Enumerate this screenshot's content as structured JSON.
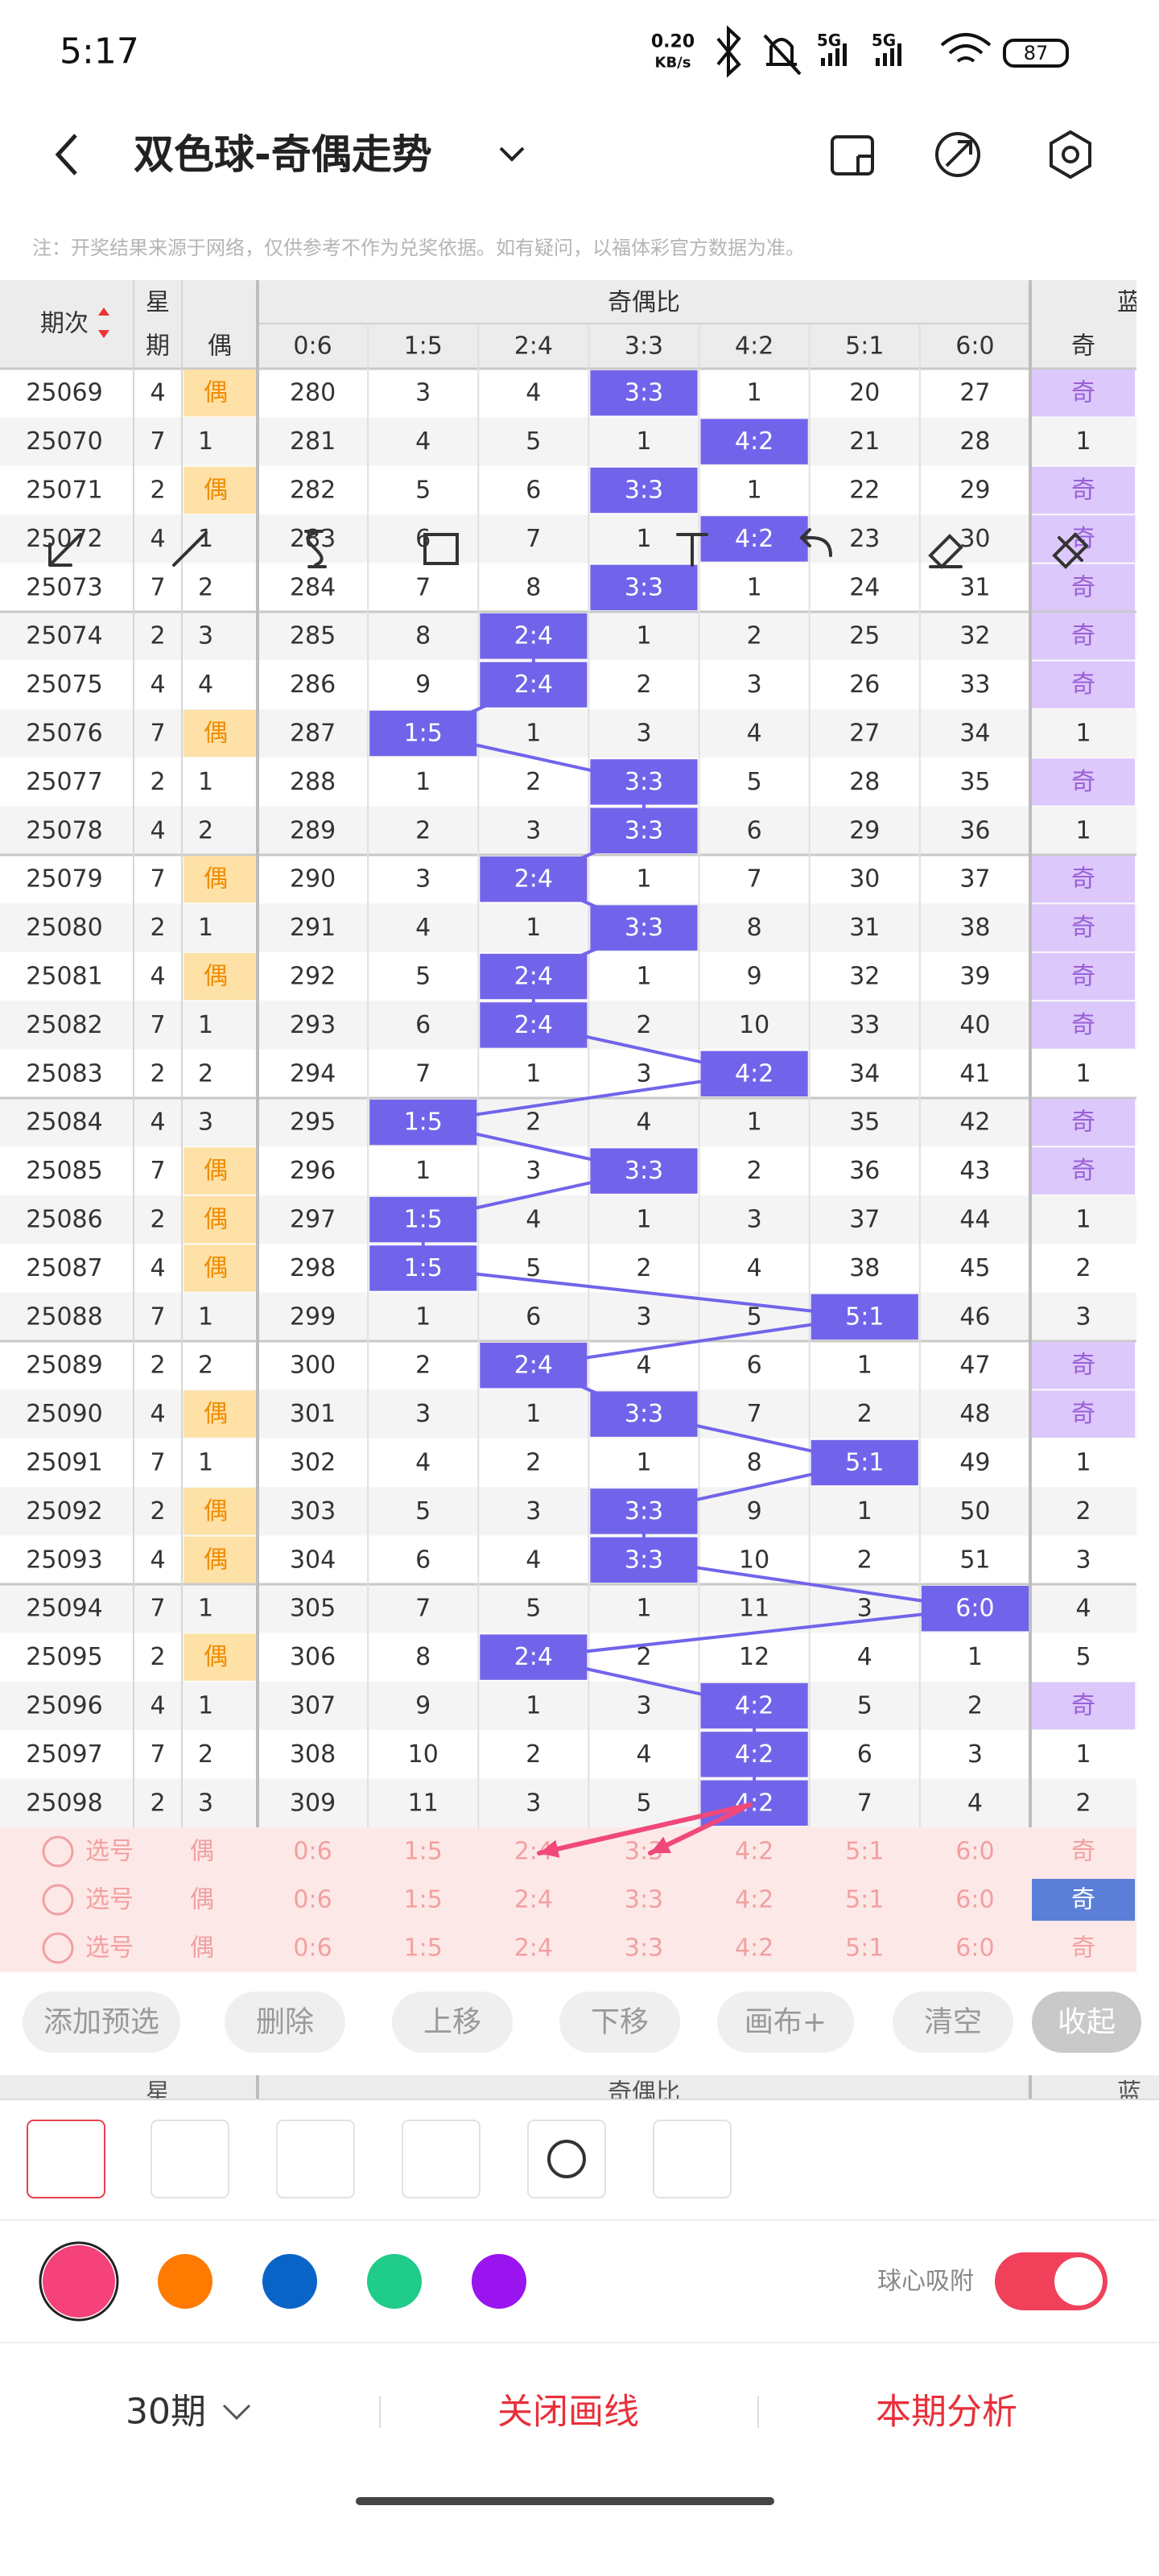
{
  "status_bar": {
    "time": "5:17",
    "speed": "0.20",
    "speed_unit": "KB/s",
    "network": [
      "5G",
      "5G"
    ],
    "battery": "87"
  },
  "header": {
    "title": "双色球-奇偶走势"
  },
  "notice": "注：开奖结果来源于网络，仅供参考不作为兑奖依据。如有疑问，以福体彩官方数据为准。",
  "table": {
    "columns": {
      "issue": "期次",
      "week": [
        "星",
        "期"
      ],
      "even": "偶",
      "group": "奇偶比",
      "ratios": [
        "0:6",
        "1:5",
        "2:4",
        "3:3",
        "4:2",
        "5:1",
        "6:0"
      ],
      "blue_group": "蓝",
      "blue": "奇"
    },
    "rows": [
      {
        "issue": 25069,
        "week": 4,
        "even": "偶",
        "cells": [
          280,
          3,
          4,
          "3:3",
          1,
          20,
          27
        ],
        "blue": "奇"
      },
      {
        "issue": 25070,
        "week": 7,
        "even": 1,
        "cells": [
          281,
          4,
          5,
          1,
          "4:2",
          21,
          28
        ],
        "blue": 1
      },
      {
        "issue": 25071,
        "week": 2,
        "even": "偶",
        "cells": [
          282,
          5,
          6,
          "3:3",
          1,
          22,
          29
        ],
        "blue": "奇"
      },
      {
        "issue": 25072,
        "week": 4,
        "even": 1,
        "cells": [
          283,
          6,
          7,
          1,
          "4:2",
          23,
          30
        ],
        "blue": "奇"
      },
      {
        "issue": 25073,
        "week": 7,
        "even": 2,
        "cells": [
          284,
          7,
          8,
          "3:3",
          1,
          24,
          31
        ],
        "blue": "奇"
      },
      {
        "issue": 25074,
        "week": 2,
        "even": 3,
        "cells": [
          285,
          8,
          "2:4",
          1,
          2,
          25,
          32
        ],
        "blue": "奇"
      },
      {
        "issue": 25075,
        "week": 4,
        "even": 4,
        "cells": [
          286,
          9,
          "2:4",
          2,
          3,
          26,
          33
        ],
        "blue": "奇"
      },
      {
        "issue": 25076,
        "week": 7,
        "even": "偶",
        "cells": [
          287,
          "1:5",
          1,
          3,
          4,
          27,
          34
        ],
        "blue": 1
      },
      {
        "issue": 25077,
        "week": 2,
        "even": 1,
        "cells": [
          288,
          1,
          2,
          "3:3",
          5,
          28,
          35
        ],
        "blue": "奇"
      },
      {
        "issue": 25078,
        "week": 4,
        "even": 2,
        "cells": [
          289,
          2,
          3,
          "3:3",
          6,
          29,
          36
        ],
        "blue": 1
      },
      {
        "issue": 25079,
        "week": 7,
        "even": "偶",
        "cells": [
          290,
          3,
          "2:4",
          1,
          7,
          30,
          37
        ],
        "blue": "奇"
      },
      {
        "issue": 25080,
        "week": 2,
        "even": 1,
        "cells": [
          291,
          4,
          1,
          "3:3",
          8,
          31,
          38
        ],
        "blue": "奇"
      },
      {
        "issue": 25081,
        "week": 4,
        "even": "偶",
        "cells": [
          292,
          5,
          "2:4",
          1,
          9,
          32,
          39
        ],
        "blue": "奇"
      },
      {
        "issue": 25082,
        "week": 7,
        "even": 1,
        "cells": [
          293,
          6,
          "2:4",
          2,
          10,
          33,
          40
        ],
        "blue": "奇"
      },
      {
        "issue": 25083,
        "week": 2,
        "even": 2,
        "cells": [
          294,
          7,
          1,
          3,
          "4:2",
          34,
          41
        ],
        "blue": 1
      },
      {
        "issue": 25084,
        "week": 4,
        "even": 3,
        "cells": [
          295,
          "1:5",
          2,
          4,
          1,
          35,
          42
        ],
        "blue": "奇"
      },
      {
        "issue": 25085,
        "week": 7,
        "even": "偶",
        "cells": [
          296,
          1,
          3,
          "3:3",
          2,
          36,
          43
        ],
        "blue": "奇"
      },
      {
        "issue": 25086,
        "week": 2,
        "even": "偶",
        "cells": [
          297,
          "1:5",
          4,
          1,
          3,
          37,
          44
        ],
        "blue": 1
      },
      {
        "issue": 25087,
        "week": 4,
        "even": "偶",
        "cells": [
          298,
          "1:5",
          5,
          2,
          4,
          38,
          45
        ],
        "blue": 2
      },
      {
        "issue": 25088,
        "week": 7,
        "even": 1,
        "cells": [
          299,
          1,
          6,
          3,
          5,
          "5:1",
          46
        ],
        "blue": 3
      },
      {
        "issue": 25089,
        "week": 2,
        "even": 2,
        "cells": [
          300,
          2,
          "2:4",
          4,
          6,
          1,
          47
        ],
        "blue": "奇"
      },
      {
        "issue": 25090,
        "week": 4,
        "even": "偶",
        "cells": [
          301,
          3,
          1,
          "3:3",
          7,
          2,
          48
        ],
        "blue": "奇"
      },
      {
        "issue": 25091,
        "week": 7,
        "even": 1,
        "cells": [
          302,
          4,
          2,
          1,
          8,
          "5:1",
          49
        ],
        "blue": 1
      },
      {
        "issue": 25092,
        "week": 2,
        "even": "偶",
        "cells": [
          303,
          5,
          3,
          "3:3",
          9,
          1,
          50
        ],
        "blue": 2
      },
      {
        "issue": 25093,
        "week": 4,
        "even": "偶",
        "cells": [
          304,
          6,
          4,
          "3:3",
          10,
          2,
          51
        ],
        "blue": 3
      },
      {
        "issue": 25094,
        "week": 7,
        "even": 1,
        "cells": [
          305,
          7,
          5,
          1,
          11,
          3,
          "6:0"
        ],
        "blue": 4
      },
      {
        "issue": 25095,
        "week": 2,
        "even": "偶",
        "cells": [
          306,
          8,
          "2:4",
          2,
          12,
          4,
          1
        ],
        "blue": 5
      },
      {
        "issue": 25096,
        "week": 4,
        "even": 1,
        "cells": [
          307,
          9,
          1,
          3,
          "4:2",
          5,
          2
        ],
        "blue": "奇"
      },
      {
        "issue": 25097,
        "week": 7,
        "even": 2,
        "cells": [
          308,
          10,
          2,
          4,
          "4:2",
          6,
          3
        ],
        "blue": 1
      },
      {
        "issue": 25098,
        "week": 2,
        "even": 3,
        "cells": [
          309,
          11,
          3,
          5,
          "4:2",
          7,
          4
        ],
        "blue": 2
      }
    ]
  },
  "picks": [
    {
      "label": "选号",
      "even": "偶",
      "cells": [
        "0:6",
        "1:5",
        "2:4",
        "3:3",
        "4:2",
        "5:1",
        "6:0"
      ],
      "blue": "奇"
    },
    {
      "label": "选号",
      "even": "偶",
      "cells": [
        "0:6",
        "1:5",
        "2:4",
        "3:3",
        "4:2",
        "5:1",
        "6:0"
      ],
      "blue": "奇"
    },
    {
      "label": "选号",
      "even": "偶",
      "cells": [
        "0:6",
        "1:5",
        "2:4",
        "3:3",
        "4:2",
        "5:1",
        "6:0"
      ],
      "blue": "奇"
    }
  ],
  "actions": [
    "添加预选",
    "删除",
    "上移",
    "下移",
    "画布+",
    "清空",
    "收起"
  ],
  "palette": {
    "colors": [
      "#f5427a",
      "#ff7a00",
      "#0a64c8",
      "#1fcc8a",
      "#9a14f0"
    ],
    "snap_label": "球心吸附"
  },
  "footer": {
    "periods": "30期",
    "close": "关闭画线",
    "analysis": "本期分析"
  }
}
